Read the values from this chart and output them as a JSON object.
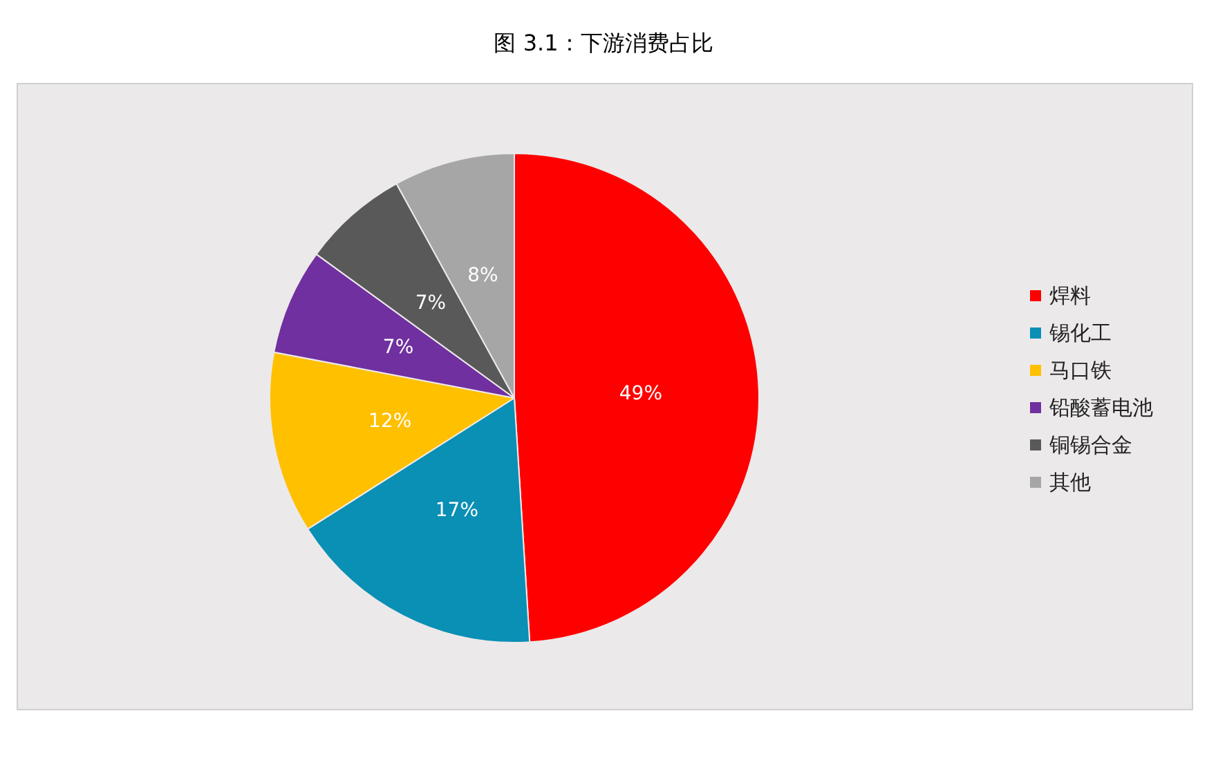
{
  "chart_data": {
    "type": "pie",
    "title": "图 3.1：下游消费占比",
    "categories": [
      "焊料",
      "锡化工",
      "马口铁",
      "铅酸蓄电池",
      "铜锡合金",
      "其他"
    ],
    "values": [
      49,
      17,
      12,
      7,
      7,
      8
    ],
    "colors": [
      "#ff0000",
      "#0a8fb5",
      "#ffc000",
      "#7030a0",
      "#595959",
      "#a6a6a6"
    ],
    "value_labels": [
      "49%",
      "17%",
      "12%",
      "7%",
      "7%",
      "8%"
    ],
    "legend": "right"
  }
}
